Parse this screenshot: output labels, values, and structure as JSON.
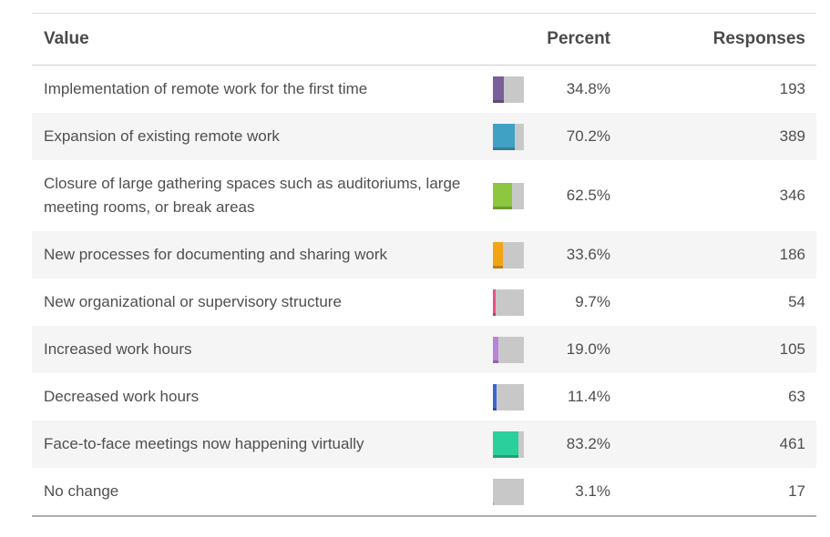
{
  "chart_data": {
    "type": "bar",
    "title": "",
    "orientation": "horizontal",
    "categories": [
      "Implementation of remote work for the first time",
      "Expansion of existing remote work",
      "Closure of large gathering spaces such as auditoriums, large meeting rooms, or break areas",
      "New processes for documenting and sharing work",
      "New organizational or supervisory structure",
      "Increased work hours",
      "Decreased work hours",
      "Face-to-face meetings now happening virtually",
      "No change"
    ],
    "series": [
      {
        "name": "Percent",
        "values": [
          34.8,
          70.2,
          62.5,
          33.6,
          9.7,
          19.0,
          11.4,
          83.2,
          3.1
        ]
      },
      {
        "name": "Responses",
        "values": [
          193,
          389,
          346,
          186,
          54,
          105,
          63,
          461,
          17
        ]
      }
    ],
    "xlim": [
      0,
      100
    ],
    "bar_colors": [
      "#7a5f9a",
      "#41a1c4",
      "#8dc63f",
      "#f2a316",
      "#ea5380",
      "#bb82dc",
      "#3e66d0",
      "#2bcf9b",
      "#e3cb7a"
    ]
  },
  "table": {
    "headers": {
      "value": "Value",
      "percent": "Percent",
      "responses": "Responses"
    },
    "track_color": "#c8c8c8",
    "rows": [
      {
        "label": "Implementation of remote work for the first time",
        "percent": "34.8%",
        "percent_value": 34.8,
        "responses": "193",
        "color": "#7a5f9a"
      },
      {
        "label": "Expansion of existing remote work",
        "percent": "70.2%",
        "percent_value": 70.2,
        "responses": "389",
        "color": "#41a1c4"
      },
      {
        "label": "Closure of large gathering spaces such as auditoriums, large meeting rooms, or break areas",
        "percent": "62.5%",
        "percent_value": 62.5,
        "responses": "346",
        "color": "#8dc63f"
      },
      {
        "label": "New processes for documenting and sharing work",
        "percent": "33.6%",
        "percent_value": 33.6,
        "responses": "186",
        "color": "#f2a316"
      },
      {
        "label": "New organizational or supervisory structure",
        "percent": "9.7%",
        "percent_value": 9.7,
        "responses": "54",
        "color": "#ea5380"
      },
      {
        "label": "Increased work hours",
        "percent": "19.0%",
        "percent_value": 19.0,
        "responses": "105",
        "color": "#bb82dc"
      },
      {
        "label": "Decreased work hours",
        "percent": "11.4%",
        "percent_value": 11.4,
        "responses": "63",
        "color": "#3e66d0"
      },
      {
        "label": "Face-to-face meetings now happening virtually",
        "percent": "83.2%",
        "percent_value": 83.2,
        "responses": "461",
        "color": "#2bcf9b"
      },
      {
        "label": "No change",
        "percent": "3.1%",
        "percent_value": 3.1,
        "responses": "17",
        "color": "#e3cb7a"
      }
    ]
  }
}
